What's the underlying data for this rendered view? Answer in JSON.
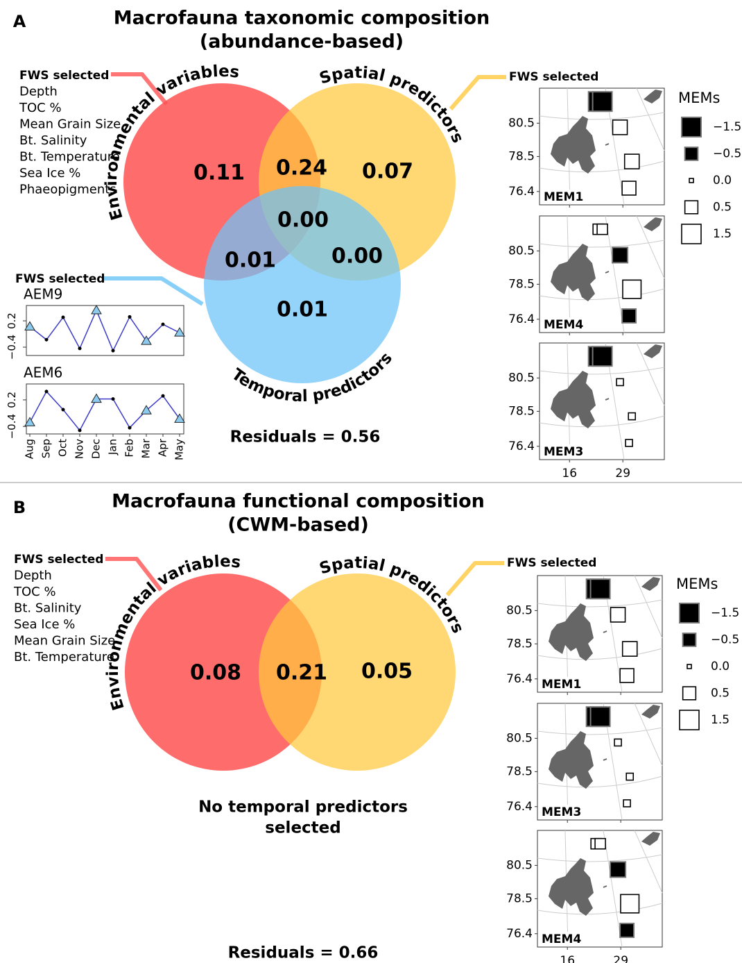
{
  "panels": [
    {
      "label": "A",
      "title": "Macrofauna taxonomic composition",
      "subtitle": "(abundance-based)",
      "sets": [
        {
          "name": "Environmental variables",
          "color": "#ff5252",
          "fws": {
            "heading": "FWS selected",
            "items": [
              "Depth",
              "TOC %",
              "Mean Grain Size",
              "Bt. Salinity",
              "Bt. Temperature",
              "Sea Ice %",
              "Phaeopigments"
            ]
          }
        },
        {
          "name": "Spatial predictors",
          "color": "#ffc83d",
          "fws": {
            "heading": "FWS selected"
          }
        },
        {
          "name": "Temporal predictors",
          "color": "#6cc4f8",
          "fws": {
            "heading": "FWS selected"
          }
        }
      ],
      "regions": [
        "0.11",
        "0.24",
        "0.07",
        "0.00",
        "0.01",
        "0.00",
        "0.01"
      ],
      "residuals": "Residuals = 0.56",
      "temporal": {
        "months": [
          "Aug",
          "Sep",
          "Oct",
          "Nov",
          "Dec",
          "Jan",
          "Feb",
          "Mar",
          "Apr",
          "May"
        ],
        "line_color": "#3c3cc8",
        "marker_color": "#8ccbee",
        "plots": [
          {
            "title": "AEM9",
            "values": [
              0.07,
              -0.23,
              0.28,
              -0.43,
              0.44,
              -0.48,
              0.29,
              -0.26,
              0.12,
              -0.07
            ],
            "markers": [
              "triangle",
              "dot",
              "dot",
              "dot",
              "triangle",
              "dot",
              "dot",
              "triangle",
              "dot",
              "triangle"
            ],
            "ylim": [
              -0.59,
              0.55
            ],
            "yticks": [
              {
                "value": -0.4,
                "label": "−0.4"
              },
              0.2
            ]
          },
          {
            "title": "AEM6",
            "values": [
              -0.31,
              0.39,
              -0.02,
              -0.49,
              0.22,
              0.22,
              -0.43,
              -0.04,
              0.29,
              -0.23
            ],
            "markers": [
              "triangle",
              "dot",
              "dot",
              "dot",
              "triangle",
              "dot",
              "dot",
              "triangle",
              "dot",
              "triangle"
            ],
            "ylim": [
              -0.57,
              0.56
            ],
            "yticks": [
              {
                "value": -0.4,
                "label": "−0.4"
              },
              0.2
            ]
          }
        ]
      },
      "maps": {
        "xlim": [
          8.7,
          39.1
        ],
        "ylim": [
          75.6,
          82.6
        ],
        "xticks": [
          16,
          29
        ],
        "yticks": [
          80.5,
          78.5,
          76.4
        ],
        "sites": {
          "lon": [
            23.0,
            24.0,
            28.3,
            31.2,
            30.5
          ],
          "lat": [
            81.8,
            81.8,
            80.25,
            78.2,
            76.6
          ]
        },
        "panels": [
          {
            "title": "MEM1",
            "values": [
              -1.5,
              -1.5,
              0.7,
              0.7,
              0.6
            ]
          },
          {
            "title": "MEM4",
            "values": [
              0.25,
              0.25,
              -0.8,
              1.3,
              -0.6
            ]
          },
          {
            "title": "MEM3",
            "values": [
              -1.5,
              -1.5,
              0.05,
              0.05,
              0.05
            ]
          }
        ],
        "legend": {
          "title": "MEMs",
          "values": [
            {
              "value": -1.5,
              "label": "−1.5"
            },
            {
              "value": -0.5,
              "label": "−0.5"
            },
            {
              "value": 0,
              "label": "0.0"
            },
            0.5,
            1.5
          ]
        }
      }
    },
    {
      "label": "B",
      "title": "Macrofauna functional composition",
      "subtitle": "(CWM-based)",
      "sets": [
        {
          "name": "Environmental variables",
          "color": "#ff5252",
          "fws": {
            "heading": "FWS selected",
            "items": [
              "Depth",
              "TOC %",
              "Bt. Salinity",
              "Sea Ice %",
              "Mean Grain Size",
              "Bt. Temperature"
            ]
          }
        },
        {
          "name": "Spatial predictors",
          "color": "#ffc83d",
          "fws": {
            "heading": "FWS selected"
          }
        }
      ],
      "regions": [
        "0.08",
        "0.21",
        "0.05"
      ],
      "note": [
        "No temporal predictors",
        "selected"
      ],
      "residuals": "Residuals = 0.66",
      "maps": {
        "xlim": [
          8.7,
          39.1
        ],
        "ylim": [
          75.6,
          82.6
        ],
        "xticks": [
          16,
          29
        ],
        "yticks": [
          80.5,
          78.5,
          76.4
        ],
        "sites": {
          "lon": [
            23.0,
            24.0,
            28.3,
            31.2,
            30.5
          ],
          "lat": [
            81.8,
            81.8,
            80.25,
            78.2,
            76.6
          ]
        },
        "panels": [
          {
            "title": "MEM1",
            "values": [
              -1.5,
              -1.5,
              0.7,
              0.7,
              0.6
            ]
          },
          {
            "title": "MEM3",
            "values": [
              -1.5,
              -1.5,
              0.05,
              0.05,
              0.05
            ]
          },
          {
            "title": "MEM4",
            "values": [
              0.25,
              0.25,
              -0.8,
              1.3,
              -0.6
            ]
          }
        ],
        "legend": {
          "title": "MEMs",
          "values": [
            {
              "value": -1.5,
              "label": "−1.5"
            },
            {
              "value": -0.5,
              "label": "−0.5"
            },
            {
              "value": 0,
              "label": "0.0"
            },
            0.5,
            1.5
          ]
        }
      }
    }
  ]
}
